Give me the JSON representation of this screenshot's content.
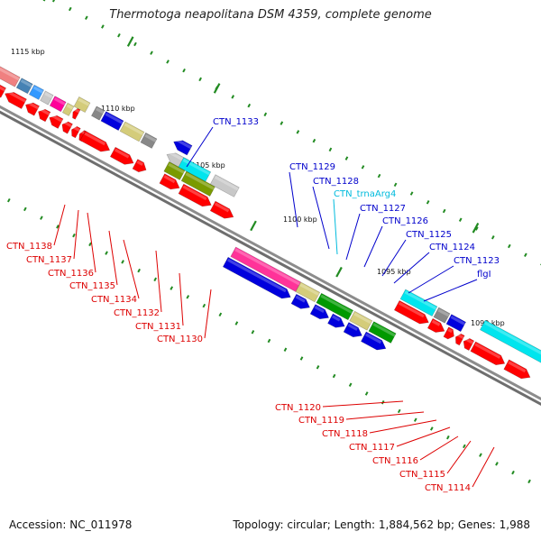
{
  "title": "Thermotoga neapolitana DSM 4359, complete genome",
  "accession": "Accession: NC_011978",
  "topology": "Topology: circular; Length: 1,884,562 bp; Genes: 1,988",
  "colors": {
    "red": "#ff0000",
    "pink": "#ff3399",
    "magenta": "#ff0099",
    "blue": "#0000dd",
    "cyan": "#00e5ee",
    "green": "#009900",
    "olive": "#7a9a00",
    "khaki": "#d4cc7a",
    "gray": "#888888",
    "lightgray": "#c8c8c8",
    "salmon": "#f08080",
    "steel": "#4682b4",
    "skyblue": "#3399ff",
    "label_red": "#dd0000",
    "label_blue": "#0000cc",
    "label_cyan": "#00bbdd",
    "tick_green": "#228b22"
  },
  "kbp_labels": [
    "1115 kbp",
    "1110 kbp",
    "1105 kbp",
    "1100 kbp",
    "1095 kbp",
    "1090 kbp"
  ],
  "labels_red_left": [
    "CTN_1138",
    "CTN_1137",
    "CTN_1136",
    "CTN_1135",
    "CTN_1134",
    "CTN_1132",
    "CTN_1131",
    "CTN_1130"
  ],
  "labels_blue_top": [
    "CTN_1133",
    "CTN_1129",
    "CTN_1128",
    "CTN_trnaArg4",
    "CTN_1127",
    "CTN_1126",
    "CTN_1125",
    "CTN_1124",
    "CTN_1123",
    "flgI"
  ],
  "labels_red_right": [
    "CTN_1120",
    "CTN_1119",
    "CTN_1118",
    "CTN_1117",
    "CTN_1116",
    "CTN_1115",
    "CTN_1114"
  ]
}
